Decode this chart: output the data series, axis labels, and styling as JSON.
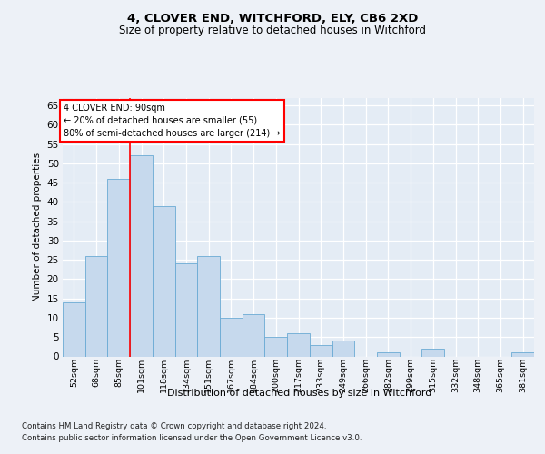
{
  "title1": "4, CLOVER END, WITCHFORD, ELY, CB6 2XD",
  "title2": "Size of property relative to detached houses in Witchford",
  "xlabel": "Distribution of detached houses by size in Witchford",
  "ylabel": "Number of detached properties",
  "categories": [
    "52sqm",
    "68sqm",
    "85sqm",
    "101sqm",
    "118sqm",
    "134sqm",
    "151sqm",
    "167sqm",
    "184sqm",
    "200sqm",
    "217sqm",
    "233sqm",
    "249sqm",
    "266sqm",
    "282sqm",
    "299sqm",
    "315sqm",
    "332sqm",
    "348sqm",
    "365sqm",
    "381sqm"
  ],
  "values": [
    14,
    26,
    46,
    52,
    39,
    24,
    26,
    10,
    11,
    5,
    6,
    3,
    4,
    0,
    1,
    0,
    2,
    0,
    0,
    0,
    1
  ],
  "bar_color": "#c6d9ed",
  "bar_edge_color": "#6aaad4",
  "red_line_x": 2.5,
  "ylim": [
    0,
    67
  ],
  "yticks": [
    0,
    5,
    10,
    15,
    20,
    25,
    30,
    35,
    40,
    45,
    50,
    55,
    60,
    65
  ],
  "annotation_line1": "4 CLOVER END: 90sqm",
  "annotation_line2": "← 20% of detached houses are smaller (55)",
  "annotation_line3": "80% of semi-detached houses are larger (214) →",
  "footer1": "Contains HM Land Registry data © Crown copyright and database right 2024.",
  "footer2": "Contains public sector information licensed under the Open Government Licence v3.0.",
  "fig_bg": "#edf1f7",
  "plot_bg": "#e4ecf5"
}
